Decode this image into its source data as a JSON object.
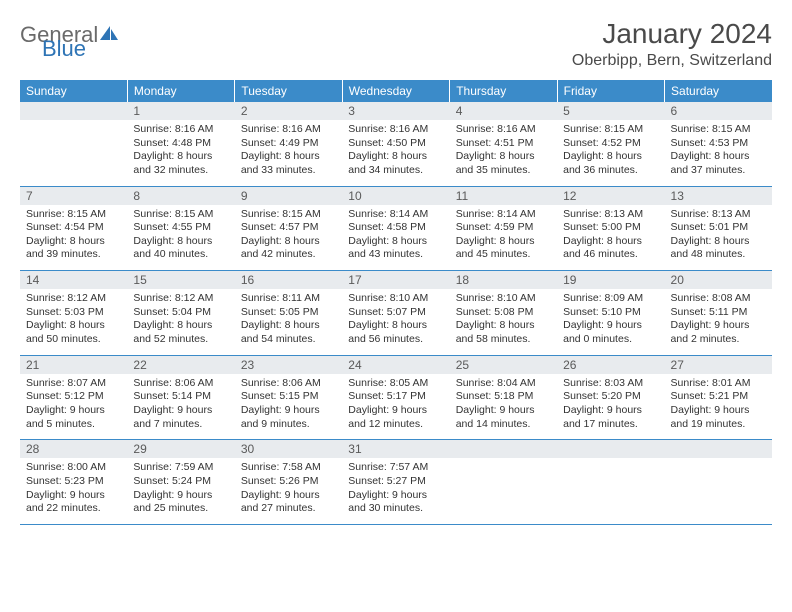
{
  "branding": {
    "logo_word1": "General",
    "logo_word2": "Blue",
    "logo_gray": "#6a6a6a",
    "logo_blue": "#2e74b5",
    "sail_fill": "#2e74b5"
  },
  "header": {
    "month_title": "January 2024",
    "location": "Oberbipp, Bern, Switzerland"
  },
  "colors": {
    "dow_bg": "#3b8bc9",
    "dow_fg": "#ffffff",
    "daynum_bg": "#e8ebee",
    "daynum_fg": "#5a5a5a",
    "row_divider": "#3b8bc9",
    "text": "#333333",
    "page_bg": "#ffffff"
  },
  "typography": {
    "month_title_size_pt": 21,
    "location_size_pt": 12,
    "dow_size_pt": 9,
    "daynum_size_pt": 9,
    "body_size_pt": 8
  },
  "layout": {
    "columns": 7,
    "rows": 5,
    "first_day_col_index": 1
  },
  "days_of_week": [
    "Sunday",
    "Monday",
    "Tuesday",
    "Wednesday",
    "Thursday",
    "Friday",
    "Saturday"
  ],
  "days": {
    "1": {
      "sunrise": "8:16 AM",
      "sunset": "4:48 PM",
      "daylight": "8 hours and 32 minutes."
    },
    "2": {
      "sunrise": "8:16 AM",
      "sunset": "4:49 PM",
      "daylight": "8 hours and 33 minutes."
    },
    "3": {
      "sunrise": "8:16 AM",
      "sunset": "4:50 PM",
      "daylight": "8 hours and 34 minutes."
    },
    "4": {
      "sunrise": "8:16 AM",
      "sunset": "4:51 PM",
      "daylight": "8 hours and 35 minutes."
    },
    "5": {
      "sunrise": "8:15 AM",
      "sunset": "4:52 PM",
      "daylight": "8 hours and 36 minutes."
    },
    "6": {
      "sunrise": "8:15 AM",
      "sunset": "4:53 PM",
      "daylight": "8 hours and 37 minutes."
    },
    "7": {
      "sunrise": "8:15 AM",
      "sunset": "4:54 PM",
      "daylight": "8 hours and 39 minutes."
    },
    "8": {
      "sunrise": "8:15 AM",
      "sunset": "4:55 PM",
      "daylight": "8 hours and 40 minutes."
    },
    "9": {
      "sunrise": "8:15 AM",
      "sunset": "4:57 PM",
      "daylight": "8 hours and 42 minutes."
    },
    "10": {
      "sunrise": "8:14 AM",
      "sunset": "4:58 PM",
      "daylight": "8 hours and 43 minutes."
    },
    "11": {
      "sunrise": "8:14 AM",
      "sunset": "4:59 PM",
      "daylight": "8 hours and 45 minutes."
    },
    "12": {
      "sunrise": "8:13 AM",
      "sunset": "5:00 PM",
      "daylight": "8 hours and 46 minutes."
    },
    "13": {
      "sunrise": "8:13 AM",
      "sunset": "5:01 PM",
      "daylight": "8 hours and 48 minutes."
    },
    "14": {
      "sunrise": "8:12 AM",
      "sunset": "5:03 PM",
      "daylight": "8 hours and 50 minutes."
    },
    "15": {
      "sunrise": "8:12 AM",
      "sunset": "5:04 PM",
      "daylight": "8 hours and 52 minutes."
    },
    "16": {
      "sunrise": "8:11 AM",
      "sunset": "5:05 PM",
      "daylight": "8 hours and 54 minutes."
    },
    "17": {
      "sunrise": "8:10 AM",
      "sunset": "5:07 PM",
      "daylight": "8 hours and 56 minutes."
    },
    "18": {
      "sunrise": "8:10 AM",
      "sunset": "5:08 PM",
      "daylight": "8 hours and 58 minutes."
    },
    "19": {
      "sunrise": "8:09 AM",
      "sunset": "5:10 PM",
      "daylight": "9 hours and 0 minutes."
    },
    "20": {
      "sunrise": "8:08 AM",
      "sunset": "5:11 PM",
      "daylight": "9 hours and 2 minutes."
    },
    "21": {
      "sunrise": "8:07 AM",
      "sunset": "5:12 PM",
      "daylight": "9 hours and 5 minutes."
    },
    "22": {
      "sunrise": "8:06 AM",
      "sunset": "5:14 PM",
      "daylight": "9 hours and 7 minutes."
    },
    "23": {
      "sunrise": "8:06 AM",
      "sunset": "5:15 PM",
      "daylight": "9 hours and 9 minutes."
    },
    "24": {
      "sunrise": "8:05 AM",
      "sunset": "5:17 PM",
      "daylight": "9 hours and 12 minutes."
    },
    "25": {
      "sunrise": "8:04 AM",
      "sunset": "5:18 PM",
      "daylight": "9 hours and 14 minutes."
    },
    "26": {
      "sunrise": "8:03 AM",
      "sunset": "5:20 PM",
      "daylight": "9 hours and 17 minutes."
    },
    "27": {
      "sunrise": "8:01 AM",
      "sunset": "5:21 PM",
      "daylight": "9 hours and 19 minutes."
    },
    "28": {
      "sunrise": "8:00 AM",
      "sunset": "5:23 PM",
      "daylight": "9 hours and 22 minutes."
    },
    "29": {
      "sunrise": "7:59 AM",
      "sunset": "5:24 PM",
      "daylight": "9 hours and 25 minutes."
    },
    "30": {
      "sunrise": "7:58 AM",
      "sunset": "5:26 PM",
      "daylight": "9 hours and 27 minutes."
    },
    "31": {
      "sunrise": "7:57 AM",
      "sunset": "5:27 PM",
      "daylight": "9 hours and 30 minutes."
    }
  },
  "labels": {
    "sunrise_prefix": "Sunrise: ",
    "sunset_prefix": "Sunset: ",
    "daylight_prefix": "Daylight: "
  }
}
